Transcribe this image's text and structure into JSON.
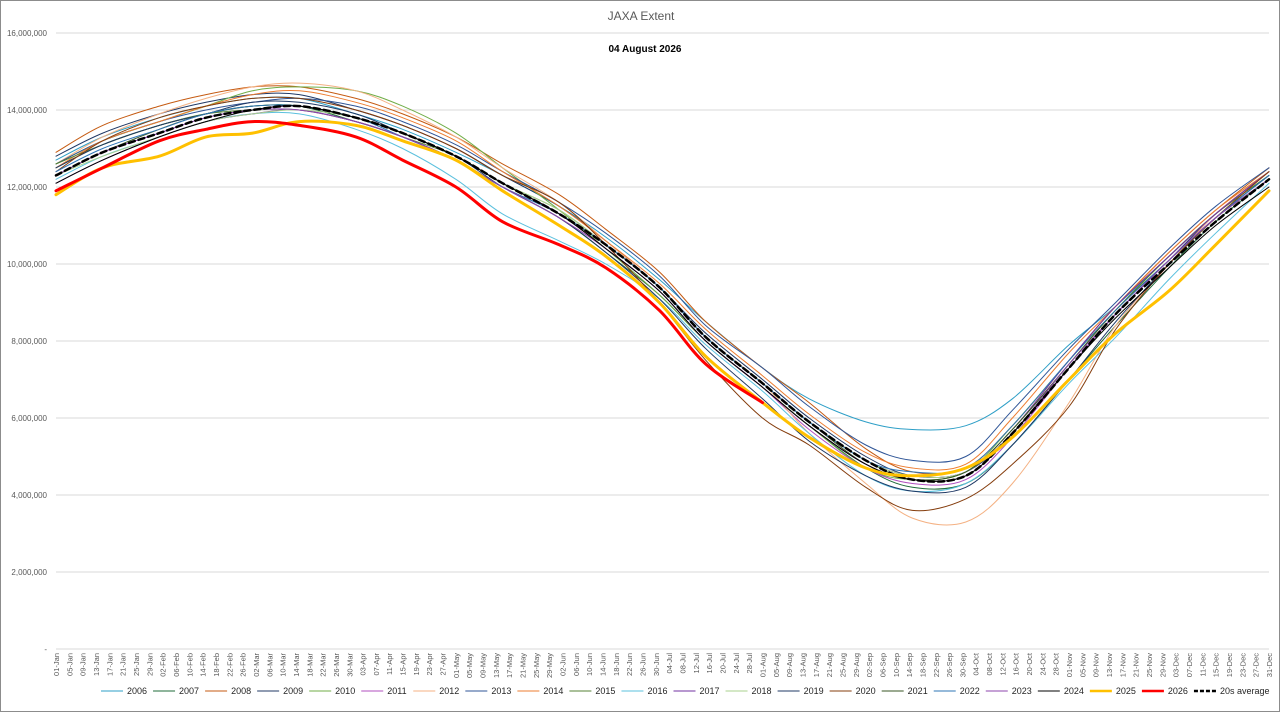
{
  "chart_data": {
    "type": "line",
    "title": "JAXA Extent",
    "subtitle": "04 August 2026",
    "xlabel": "",
    "ylabel": "",
    "ylim": [
      0,
      16000000
    ],
    "yticks": [
      0,
      2000000,
      4000000,
      6000000,
      8000000,
      10000000,
      12000000,
      14000000,
      16000000
    ],
    "ytick_labels": [
      "-",
      "2,000,000",
      "4,000,000",
      "6,000,000",
      "8,000,000",
      "10,000,000",
      "12,000,000",
      "14,000,000",
      "16,000,000"
    ],
    "grid": true,
    "legend_position": "bottom",
    "x_day_of_year": [
      1,
      15,
      32,
      46,
      60,
      74,
      91,
      105,
      121,
      135,
      152,
      166,
      182,
      196,
      213,
      227,
      244,
      258,
      274,
      288,
      305,
      319,
      335,
      349,
      365
    ],
    "x_tick_labels": [
      "01-Jan",
      "05-Jan",
      "09-Jan",
      "13-Jan",
      "17-Jan",
      "21-Jan",
      "25-Jan",
      "29-Jan",
      "02-Feb",
      "06-Feb",
      "10-Feb",
      "14-Feb",
      "18-Feb",
      "22-Feb",
      "26-Feb",
      "02-Mar",
      "06-Mar",
      "10-Mar",
      "14-Mar",
      "18-Mar",
      "22-Mar",
      "26-Mar",
      "30-Mar",
      "03-Apr",
      "07-Apr",
      "11-Apr",
      "15-Apr",
      "19-Apr",
      "23-Apr",
      "27-Apr",
      "01-May",
      "05-May",
      "09-May",
      "13-May",
      "17-May",
      "21-May",
      "25-May",
      "29-May",
      "02-Jun",
      "06-Jun",
      "10-Jun",
      "14-Jun",
      "18-Jun",
      "22-Jun",
      "26-Jun",
      "30-Jun",
      "04-Jul",
      "08-Jul",
      "12-Jul",
      "16-Jul",
      "20-Jul",
      "24-Jul",
      "28-Jul",
      "01-Aug",
      "05-Aug",
      "09-Aug",
      "13-Aug",
      "17-Aug",
      "21-Aug",
      "25-Aug",
      "29-Aug",
      "02-Sep",
      "06-Sep",
      "10-Sep",
      "14-Sep",
      "18-Sep",
      "22-Sep",
      "26-Sep",
      "30-Sep",
      "04-Oct",
      "08-Oct",
      "12-Oct",
      "16-Oct",
      "20-Oct",
      "24-Oct",
      "28-Oct",
      "01-Nov",
      "05-Nov",
      "09-Nov",
      "13-Nov",
      "17-Nov",
      "21-Nov",
      "25-Nov",
      "29-Nov",
      "03-Dec",
      "07-Dec",
      "11-Dec",
      "15-Dec",
      "19-Dec",
      "23-Dec",
      "27-Dec",
      "31-Dec"
    ],
    "series": [
      {
        "name": "2006",
        "color": "#2e9fc7",
        "dash": false,
        "width": 1,
        "values": [
          12700000,
          13300000,
          13800000,
          14100000,
          14300000,
          14300000,
          13900000,
          13500000,
          12900000,
          12300000,
          11500000,
          10700000,
          9600000,
          8500000,
          7300000,
          6500000,
          5900000,
          5700000,
          5800000,
          6500000,
          7900000,
          8900000,
          10200000,
          11300000,
          12400000
        ]
      },
      {
        "name": "2007",
        "color": "#1f6b3a",
        "dash": false,
        "width": 1,
        "values": [
          12500000,
          13100000,
          13600000,
          13900000,
          14100000,
          14100000,
          13700000,
          13300000,
          12700000,
          12000000,
          11200000,
          10300000,
          9200000,
          8000000,
          6800000,
          5800000,
          4700000,
          4200000,
          4300000,
          5300000,
          7000000,
          8400000,
          9900000,
          11100000,
          12200000
        ]
      },
      {
        "name": "2008",
        "color": "#c55a11",
        "dash": false,
        "width": 1,
        "values": [
          12900000,
          13600000,
          14100000,
          14400000,
          14600000,
          14600000,
          14300000,
          13900000,
          13300000,
          12600000,
          11800000,
          10900000,
          9800000,
          8500000,
          7300000,
          6400000,
          5200000,
          4600000,
          4700000,
          5800000,
          7500000,
          8900000,
          10300000,
          11400000,
          12500000
        ]
      },
      {
        "name": "2009",
        "color": "#203864",
        "dash": false,
        "width": 1,
        "values": [
          12800000,
          13400000,
          13900000,
          14200000,
          14400000,
          14400000,
          14000000,
          13600000,
          13000000,
          12300000,
          11500000,
          10600000,
          9400000,
          8200000,
          7000000,
          6000000,
          5000000,
          4500000,
          4600000,
          5600000,
          7300000,
          8700000,
          10100000,
          11300000,
          12400000
        ]
      },
      {
        "name": "2010",
        "color": "#70ad47",
        "dash": false,
        "width": 1,
        "values": [
          12600000,
          13200000,
          13700000,
          14100000,
          14500000,
          14600000,
          14500000,
          14100000,
          13400000,
          12500000,
          11400000,
          10400000,
          9200000,
          8000000,
          6800000,
          5800000,
          4700000,
          4400000,
          4600000,
          5800000,
          7500000,
          8800000,
          10200000,
          11300000,
          12300000
        ]
      },
      {
        "name": "2011",
        "color": "#b04fbf",
        "dash": false,
        "width": 1,
        "values": [
          12300000,
          12900000,
          13400000,
          13800000,
          14000000,
          14100000,
          13800000,
          13400000,
          12800000,
          12100000,
          11300000,
          10400000,
          9300000,
          8000000,
          6800000,
          5700000,
          4700000,
          4300000,
          4400000,
          5500000,
          7300000,
          8700000,
          10100000,
          11200000,
          12300000
        ]
      },
      {
        "name": "2012",
        "color": "#f4b183",
        "dash": false,
        "width": 1,
        "values": [
          12600000,
          13300000,
          13900000,
          14300000,
          14600000,
          14700000,
          14500000,
          14000000,
          13300000,
          12500000,
          11600000,
          10600000,
          9400000,
          8100000,
          6900000,
          5600000,
          4300000,
          3400000,
          3300000,
          4300000,
          6400000,
          8400000,
          10000000,
          11300000,
          12400000
        ]
      },
      {
        "name": "2013",
        "color": "#2f5597",
        "dash": false,
        "width": 1,
        "values": [
          12600000,
          13200000,
          13700000,
          14000000,
          14200000,
          14300000,
          14100000,
          13700000,
          13100000,
          12400000,
          11600000,
          10800000,
          9700000,
          8400000,
          7300000,
          6300000,
          5300000,
          4900000,
          5000000,
          6200000,
          7800000,
          9000000,
          10400000,
          11500000,
          12500000
        ]
      },
      {
        "name": "2014",
        "color": "#ed7d31",
        "dash": false,
        "width": 1,
        "values": [
          12500000,
          13200000,
          13700000,
          14100000,
          14400000,
          14500000,
          14200000,
          13800000,
          13200000,
          12400000,
          11500000,
          10600000,
          9500000,
          8300000,
          7100000,
          6100000,
          5100000,
          4700000,
          4800000,
          6000000,
          7700000,
          8900000,
          10300000,
          11400000,
          12400000
        ]
      },
      {
        "name": "2015",
        "color": "#548235",
        "dash": false,
        "width": 1,
        "values": [
          12600000,
          13100000,
          13600000,
          13900000,
          14000000,
          14000000,
          13700000,
          13300000,
          12800000,
          12100000,
          11400000,
          10500000,
          9400000,
          8100000,
          6900000,
          5900000,
          4900000,
          4400000,
          4500000,
          5600000,
          7400000,
          8800000,
          10200000,
          11300000,
          12300000
        ]
      },
      {
        "name": "2016",
        "color": "#5bc0de",
        "dash": false,
        "width": 1,
        "values": [
          12200000,
          12800000,
          13300000,
          13700000,
          13900000,
          13900000,
          13500000,
          13000000,
          12200000,
          11300000,
          10600000,
          10000000,
          9100000,
          7900000,
          6700000,
          5600000,
          4500000,
          4100000,
          4300000,
          5300000,
          6900000,
          8100000,
          9600000,
          10800000,
          12100000
        ]
      },
      {
        "name": "2017",
        "color": "#7030a0",
        "dash": false,
        "width": 1,
        "values": [
          12100000,
          12700000,
          13300000,
          13700000,
          13900000,
          14000000,
          13700000,
          13300000,
          12700000,
          12000000,
          11300000,
          10500000,
          9400000,
          8100000,
          6900000,
          5900000,
          4900000,
          4500000,
          4600000,
          5700000,
          7500000,
          8900000,
          10200000,
          11300000,
          12400000
        ]
      },
      {
        "name": "2018",
        "color": "#a9d18e",
        "dash": false,
        "width": 1,
        "values": [
          12300000,
          12800000,
          13300000,
          13700000,
          13900000,
          14000000,
          13800000,
          13400000,
          12800000,
          12100000,
          11400000,
          10500000,
          9400000,
          8100000,
          6900000,
          5900000,
          4900000,
          4500000,
          4600000,
          5700000,
          7400000,
          8800000,
          10100000,
          11200000,
          12300000
        ]
      },
      {
        "name": "2019",
        "color": "#1f3864",
        "dash": false,
        "width": 1,
        "values": [
          12500000,
          13100000,
          13600000,
          13900000,
          14200000,
          14200000,
          13900000,
          13400000,
          12800000,
          12000000,
          11200000,
          10300000,
          9100000,
          7800000,
          6500000,
          5400000,
          4500000,
          4100000,
          4200000,
          5300000,
          7000000,
          8500000,
          10000000,
          11200000,
          12300000
        ]
      },
      {
        "name": "2020",
        "color": "#843c0c",
        "dash": false,
        "width": 1,
        "values": [
          12400000,
          13200000,
          13800000,
          14100000,
          14300000,
          14300000,
          14000000,
          13600000,
          13000000,
          12300000,
          11600000,
          10500000,
          9000000,
          7500000,
          6000000,
          5300000,
          4200000,
          3600000,
          3900000,
          4800000,
          6300000,
          8300000,
          10000000,
          11200000,
          12400000
        ]
      },
      {
        "name": "2021",
        "color": "#375623",
        "dash": false,
        "width": 1,
        "values": [
          12300000,
          12900000,
          13500000,
          13900000,
          14100000,
          14100000,
          13800000,
          13400000,
          12800000,
          12100000,
          11300000,
          10500000,
          9400000,
          8100000,
          6900000,
          5900000,
          4800000,
          4400000,
          4600000,
          5700000,
          7400000,
          8800000,
          10100000,
          11200000,
          12200000
        ]
      },
      {
        "name": "2022",
        "color": "#2e75b6",
        "dash": false,
        "width": 1,
        "values": [
          12400000,
          13000000,
          13500000,
          13900000,
          14100000,
          14100000,
          13800000,
          13300000,
          12700000,
          12000000,
          11300000,
          10500000,
          9400000,
          8100000,
          6900000,
          5900000,
          4900000,
          4600000,
          4700000,
          5800000,
          7500000,
          8800000,
          10100000,
          11200000,
          12300000
        ]
      },
      {
        "name": "2023",
        "color": "#8e44ad",
        "dash": false,
        "width": 1,
        "values": [
          12300000,
          12900000,
          13400000,
          13800000,
          14000000,
          14000000,
          13700000,
          13300000,
          12700000,
          12000000,
          11200000,
          10400000,
          9300000,
          8000000,
          6800000,
          5800000,
          4800000,
          4400000,
          4500000,
          5600000,
          7400000,
          8700000,
          10100000,
          11200000,
          12200000
        ]
      },
      {
        "name": "2024",
        "color": "#000000",
        "dash": false,
        "width": 1,
        "values": [
          12100000,
          12700000,
          13300000,
          13700000,
          14000000,
          14100000,
          13800000,
          13400000,
          12800000,
          12100000,
          11300000,
          10400000,
          9300000,
          8000000,
          6800000,
          5800000,
          4800000,
          4400000,
          4500000,
          5600000,
          7300000,
          8600000,
          9900000,
          11000000,
          12000000
        ]
      },
      {
        "name": "2025",
        "color": "#ffc000",
        "dash": false,
        "width": 3,
        "values": [
          11800000,
          12500000,
          12800000,
          13300000,
          13400000,
          13700000,
          13600000,
          13200000,
          12700000,
          11900000,
          11000000,
          10200000,
          9000000,
          7600000,
          6400000,
          5500000,
          4700000,
          4500000,
          4700000,
          5500000,
          7000000,
          8200000,
          9300000,
          10500000,
          11900000
        ]
      },
      {
        "name": "2026",
        "color": "#ff0000",
        "dash": false,
        "width": 3,
        "values": [
          11900000,
          12500000,
          13200000,
          13500000,
          13700000,
          13600000,
          13300000,
          12700000,
          12000000,
          11100000,
          10500000,
          9900000,
          8800000,
          7400000,
          6400000
        ]
      },
      {
        "name": "20s average",
        "color": "#000000",
        "dash": true,
        "width": 2.5,
        "values": [
          12300000,
          12900000,
          13400000,
          13800000,
          14000000,
          14100000,
          13800000,
          13400000,
          12800000,
          12100000,
          11300000,
          10500000,
          9400000,
          8100000,
          6900000,
          5900000,
          4900000,
          4400000,
          4500000,
          5600000,
          7300000,
          8700000,
          10000000,
          11100000,
          12200000
        ]
      }
    ]
  }
}
